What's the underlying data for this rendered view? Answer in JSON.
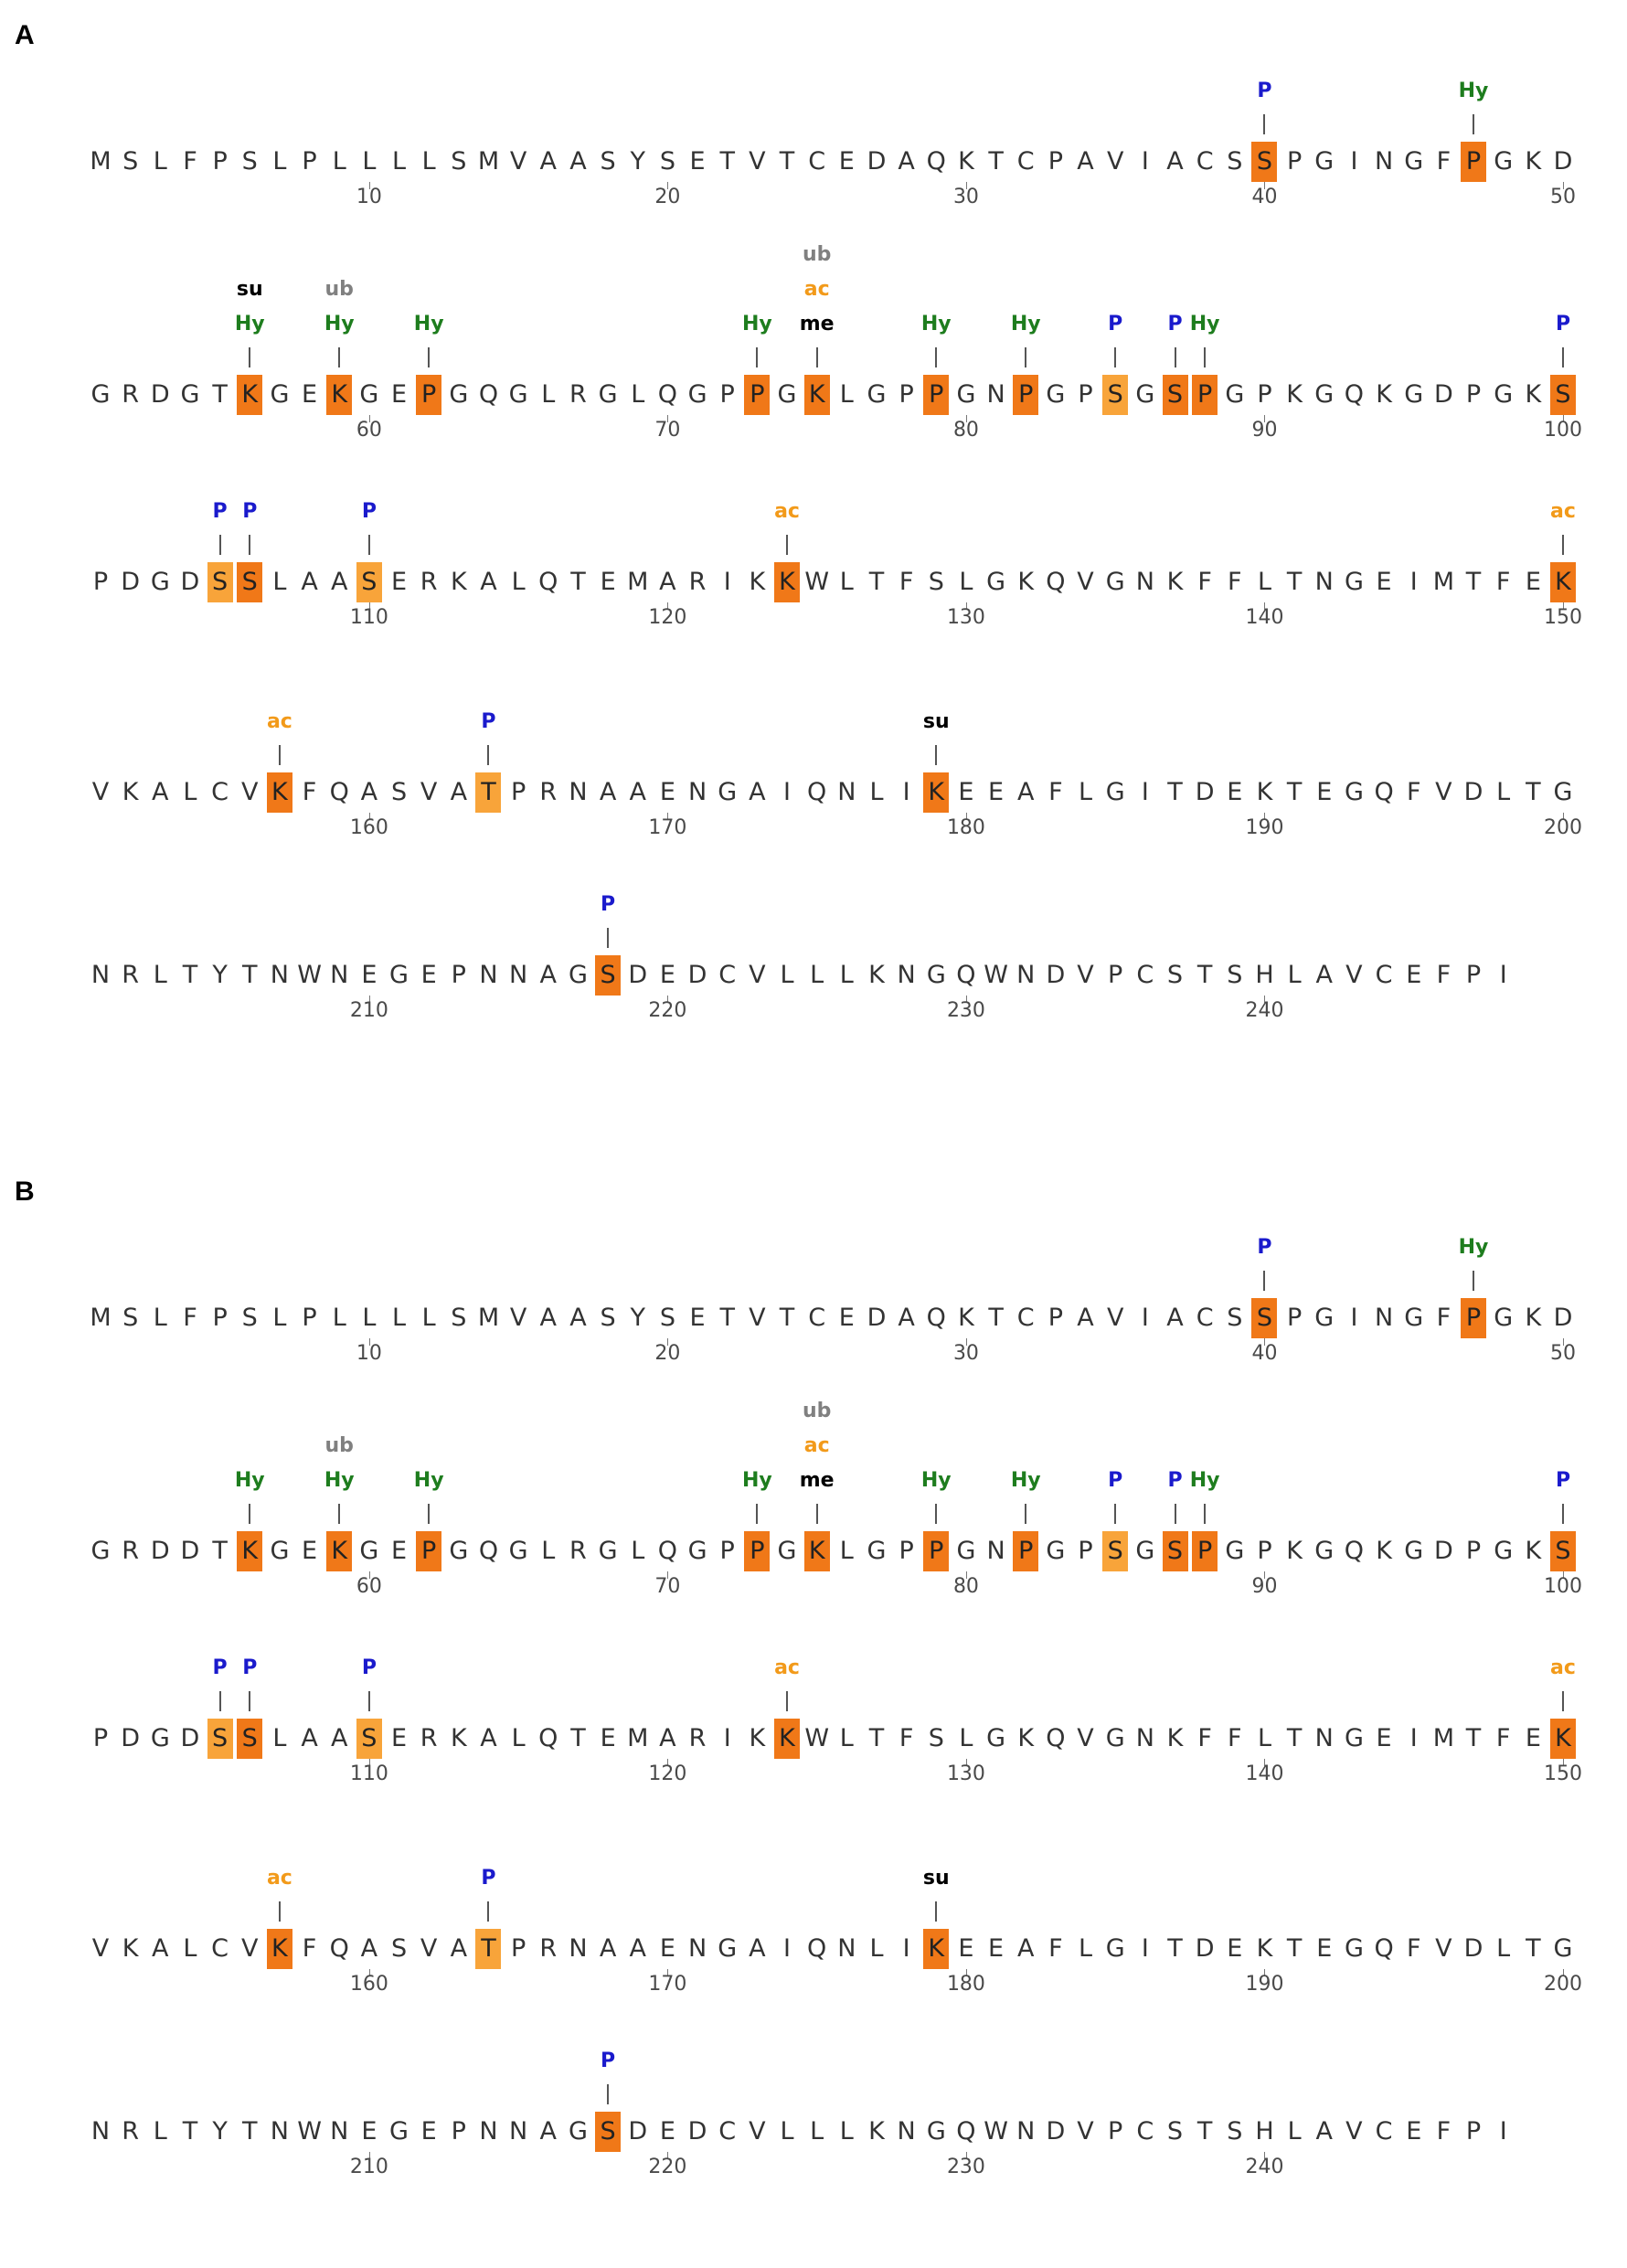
{
  "colors": {
    "highlight_dark": "#f07818",
    "highlight_light": "#f8a43a",
    "residue_text": "#333333",
    "P": "#1a1acc",
    "Hy": "#1e7d1e",
    "ac": "#f29a1a",
    "ub": "#808080",
    "me": "#000000",
    "su": "#000000"
  },
  "panels": [
    {
      "label": "A",
      "rows": [
        {
          "start": 1,
          "sequence": "MSLFPSLPLLLLSMVAASYSETVTCEDAQKTCPAVIACSSPGINGFPGKD"
        },
        {
          "start": 51,
          "sequence": "GRDGTKGEKGEPGQGLRGLQGPPGKLGPPGNPGPSGSPGPKGQKGDPGKS"
        },
        {
          "start": 101,
          "sequence": "PDGDSSLAASERKALQTEMARIKKWLTFSLGKQVGNKFFLTNGEIMTFEK"
        },
        {
          "start": 151,
          "sequence": "VKALCVKFQASVATPRNAAENGAIQNLIKEEAFLGITDEKTEGQFVDLTG"
        },
        {
          "start": 201,
          "sequence": "NRLTYTNWNEGEPNNAGSDEDCVLLLKNGQWNDVPCSTSHLAVCEFPI"
        }
      ],
      "ticks": [
        "10",
        "20",
        "30",
        "40",
        "50",
        "60",
        "70",
        "80",
        "90",
        "100",
        "110",
        "120",
        "130",
        "140",
        "150",
        "160",
        "170",
        "180",
        "190",
        "200",
        "210",
        "220",
        "230",
        "240"
      ],
      "sites": [
        {
          "pos": 40,
          "mods": [
            "P"
          ]
        },
        {
          "pos": 47,
          "mods": [
            "Hy"
          ]
        },
        {
          "pos": 56,
          "mods": [
            "su",
            "Hy"
          ]
        },
        {
          "pos": 59,
          "mods": [
            "ub",
            "Hy"
          ]
        },
        {
          "pos": 62,
          "mods": [
            "Hy"
          ]
        },
        {
          "pos": 73,
          "mods": [
            "Hy"
          ]
        },
        {
          "pos": 75,
          "mods": [
            "ub",
            "ac",
            "me"
          ]
        },
        {
          "pos": 79,
          "mods": [
            "Hy"
          ]
        },
        {
          "pos": 82,
          "mods": [
            "Hy"
          ]
        },
        {
          "pos": 85,
          "mods": [
            "P"
          ]
        },
        {
          "pos": 87,
          "mods": [
            "P"
          ]
        },
        {
          "pos": 88,
          "mods": [
            "Hy"
          ]
        },
        {
          "pos": 100,
          "mods": [
            "P"
          ]
        },
        {
          "pos": 105,
          "mods": [
            "P"
          ]
        },
        {
          "pos": 106,
          "mods": [
            "P"
          ]
        },
        {
          "pos": 110,
          "mods": [
            "P"
          ]
        },
        {
          "pos": 124,
          "mods": [
            "ac"
          ]
        },
        {
          "pos": 150,
          "mods": [
            "ac"
          ]
        },
        {
          "pos": 157,
          "mods": [
            "ac"
          ]
        },
        {
          "pos": 164,
          "mods": [
            "P"
          ]
        },
        {
          "pos": 179,
          "mods": [
            "su"
          ]
        },
        {
          "pos": 218,
          "mods": [
            "P"
          ]
        }
      ]
    },
    {
      "label": "B",
      "rows": [
        {
          "start": 1,
          "sequence": "MSLFPSLPLLLLSMVAASYSETVTCEDAQKTCPAVIACSSPGINGFPGKD"
        },
        {
          "start": 51,
          "sequence": "GRDDTKGEKGEPGQGLRGLQGPPGKLGPPGNPGPSGSPGPKGQKGDPGKS"
        },
        {
          "start": 101,
          "sequence": "PDGDSSLAASERKALQTEMARIKKWLTFSLGKQVGNKFFLTNGEIMTFEK"
        },
        {
          "start": 151,
          "sequence": "VKALCVKFQASVATPRNAAENGAIQNLIKEEAFLGITDEKTEGQFVDLTG"
        },
        {
          "start": 201,
          "sequence": "NRLTYTNWNEGEPNNAGSDEDCVLLLKNGQWNDVPCSTSHLAVCEFPI"
        }
      ],
      "ticks": [
        "10",
        "20",
        "30",
        "40",
        "50",
        "60",
        "70",
        "80",
        "90",
        "100",
        "110",
        "120",
        "130",
        "140",
        "150",
        "160",
        "170",
        "180",
        "190",
        "200",
        "210",
        "220",
        "230",
        "240"
      ],
      "sites": [
        {
          "pos": 40,
          "mods": [
            "P"
          ]
        },
        {
          "pos": 47,
          "mods": [
            "Hy"
          ]
        },
        {
          "pos": 56,
          "mods": [
            "Hy"
          ]
        },
        {
          "pos": 59,
          "mods": [
            "ub",
            "Hy"
          ]
        },
        {
          "pos": 62,
          "mods": [
            "Hy"
          ]
        },
        {
          "pos": 73,
          "mods": [
            "Hy"
          ]
        },
        {
          "pos": 75,
          "mods": [
            "ub",
            "ac",
            "me"
          ]
        },
        {
          "pos": 79,
          "mods": [
            "Hy"
          ]
        },
        {
          "pos": 82,
          "mods": [
            "Hy"
          ]
        },
        {
          "pos": 85,
          "mods": [
            "P"
          ]
        },
        {
          "pos": 87,
          "mods": [
            "P"
          ]
        },
        {
          "pos": 88,
          "mods": [
            "Hy"
          ]
        },
        {
          "pos": 100,
          "mods": [
            "P"
          ]
        },
        {
          "pos": 105,
          "mods": [
            "P"
          ]
        },
        {
          "pos": 106,
          "mods": [
            "P"
          ]
        },
        {
          "pos": 110,
          "mods": [
            "P"
          ]
        },
        {
          "pos": 124,
          "mods": [
            "ac"
          ]
        },
        {
          "pos": 150,
          "mods": [
            "ac"
          ]
        },
        {
          "pos": 157,
          "mods": [
            "ac"
          ]
        },
        {
          "pos": 164,
          "mods": [
            "P"
          ]
        },
        {
          "pos": 179,
          "mods": [
            "su"
          ]
        },
        {
          "pos": 218,
          "mods": [
            "P"
          ]
        }
      ]
    }
  ]
}
